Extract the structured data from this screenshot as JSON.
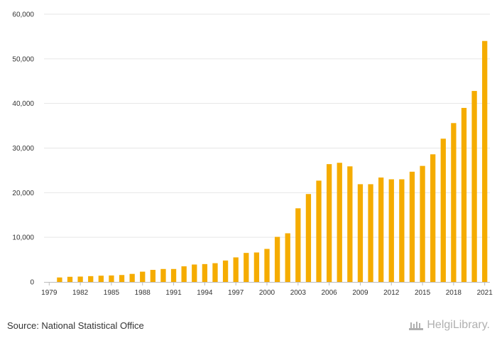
{
  "chart_data": {
    "type": "bar",
    "title": "",
    "xlabel": "",
    "ylabel": "",
    "ylim": [
      0,
      60000
    ],
    "y_ticks": [
      0,
      10000,
      20000,
      30000,
      40000,
      50000,
      60000
    ],
    "y_tick_labels": [
      "0",
      "10,000",
      "20,000",
      "30,000",
      "40,000",
      "50,000",
      "60,000"
    ],
    "x_tick_labels": [
      "1979",
      "1982",
      "1985",
      "1988",
      "1991",
      "1994",
      "1997",
      "2000",
      "2003",
      "2006",
      "2009",
      "2012",
      "2015",
      "2018",
      "2021"
    ],
    "grid": true,
    "bar_color": "#f5ac00",
    "categories": [
      "1979",
      "1980",
      "1981",
      "1982",
      "1983",
      "1984",
      "1985",
      "1986",
      "1987",
      "1988",
      "1989",
      "1990",
      "1991",
      "1992",
      "1993",
      "1994",
      "1995",
      "1996",
      "1997",
      "1998",
      "1999",
      "2000",
      "2001",
      "2002",
      "2003",
      "2004",
      "2005",
      "2006",
      "2007",
      "2008",
      "2009",
      "2010",
      "2011",
      "2012",
      "2013",
      "2014",
      "2015",
      "2016",
      "2017",
      "2018",
      "2019",
      "2020",
      "2021"
    ],
    "values": [
      null,
      1000,
      1150,
      1200,
      1300,
      1400,
      1450,
      1550,
      1800,
      2300,
      2700,
      2900,
      2900,
      3500,
      3900,
      4000,
      4200,
      4800,
      5500,
      6500,
      6600,
      7400,
      10100,
      10900,
      16500,
      19700,
      22700,
      26400,
      26700,
      25900,
      21900,
      21900,
      23400,
      23000,
      23000,
      24700,
      26000,
      28600,
      32100,
      35600,
      39000,
      42800,
      54000
    ]
  },
  "footer": {
    "source": "Source: National Statistical Office",
    "brand": "HelgiLibrary."
  }
}
